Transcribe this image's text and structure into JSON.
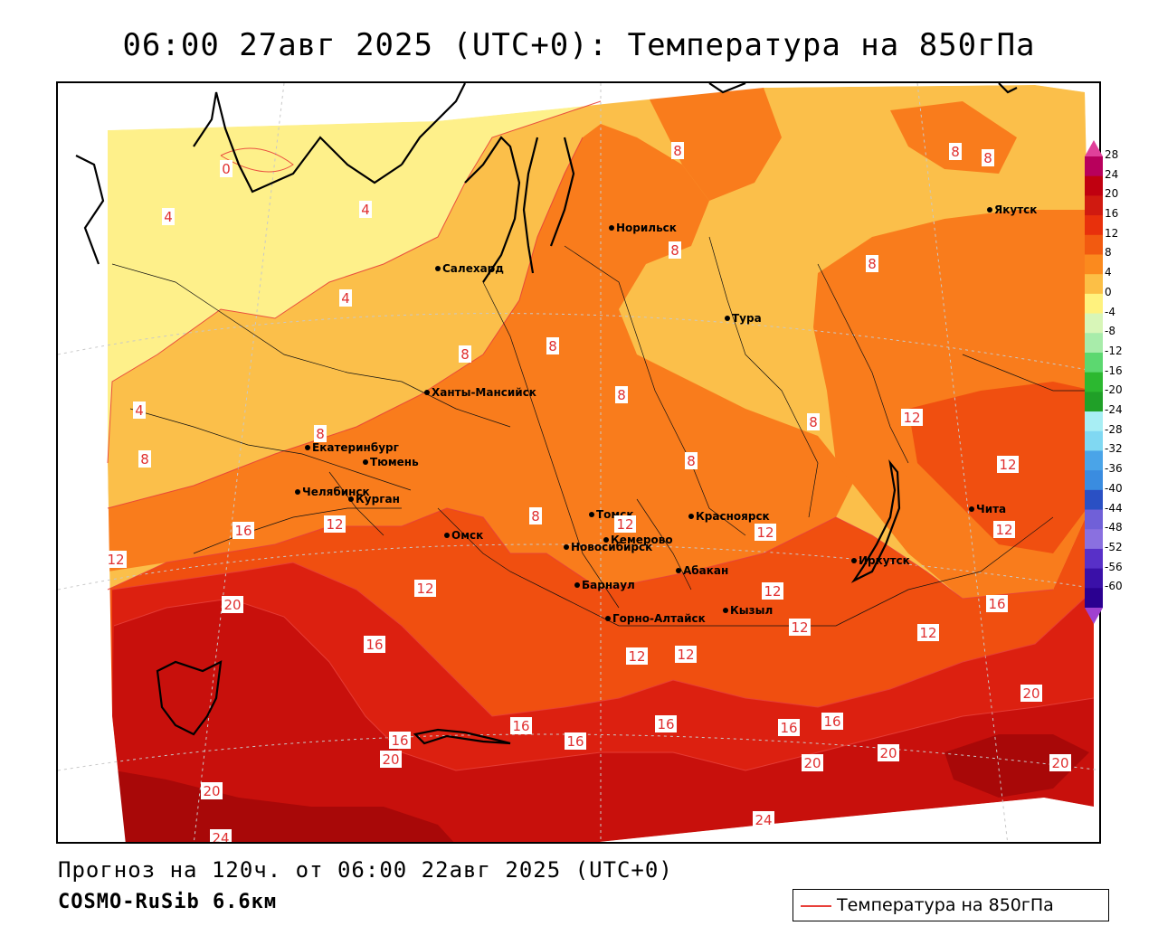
{
  "title": "06:00 27авг 2025 (UTC+0): Температура на 850гПа",
  "footer": {
    "forecast": "Прогноз на 120ч. от 06:00 22авг 2025 (UTC+0)",
    "model": "COSMO-RuSib 6.6км"
  },
  "legend": {
    "label": "Температура на 850гПа",
    "color": "#e8403a"
  },
  "colors": {
    "band_0_4": "#fef08a",
    "band_4_8": "#fbbf4a",
    "band_8_12": "#f97c1c",
    "band_12_16": "#f04f10",
    "band_16_20": "#dc2010",
    "band_20_24": "#c8100c",
    "band_24_28": "#a80808"
  },
  "colorbar": {
    "labels": [
      "28",
      "24",
      "20",
      "16",
      "12",
      "8",
      "4",
      "0",
      "-4",
      "-8",
      "-12",
      "-16",
      "-20",
      "-24",
      "-28",
      "-32",
      "-36",
      "-40",
      "-44",
      "-48",
      "-52",
      "-56",
      "-60"
    ],
    "colors": [
      "#b8005c",
      "#c00010",
      "#d01a10",
      "#e8300c",
      "#f25a10",
      "#fb8a1e",
      "#fcbf46",
      "#fff27e",
      "#d8f6b8",
      "#a8ecaa",
      "#5cd870",
      "#2cb830",
      "#20a028",
      "#a8eef4",
      "#80d8f2",
      "#4aa4e8",
      "#3a8ce0",
      "#2a50c4",
      "#7060d8",
      "#8a70e0",
      "#5830c8",
      "#3a10a8",
      "#2a0090"
    ]
  },
  "cities": [
    {
      "name": "Норильск"
    },
    {
      "name": "Якутск"
    },
    {
      "name": "Салехард"
    },
    {
      "name": "Тура"
    },
    {
      "name": "Ханты-Мансийск"
    },
    {
      "name": "Екатеринбург"
    },
    {
      "name": "Тюмень"
    },
    {
      "name": "Челябинск"
    },
    {
      "name": "Курган"
    },
    {
      "name": "Омск"
    },
    {
      "name": "Новосибирск"
    },
    {
      "name": "Томск"
    },
    {
      "name": "Кемерово"
    },
    {
      "name": "Красноярск"
    },
    {
      "name": "Абакан"
    },
    {
      "name": "Барнаул"
    },
    {
      "name": "Горно-Алтайск"
    },
    {
      "name": "Кызыл"
    },
    {
      "name": "Иркутск"
    },
    {
      "name": "Чита"
    }
  ],
  "isotherm_labels": [
    "0",
    "4",
    "4",
    "4",
    "4",
    "8",
    "8",
    "8",
    "8",
    "8",
    "8",
    "8",
    "8",
    "8",
    "8",
    "8",
    "8",
    "8",
    "12",
    "12",
    "12",
    "12",
    "12",
    "12",
    "12",
    "12",
    "12",
    "12",
    "12",
    "12",
    "12",
    "16",
    "16",
    "16",
    "16",
    "16",
    "16",
    "16",
    "16",
    "16",
    "20",
    "20",
    "20",
    "20",
    "20",
    "20",
    "20",
    "24",
    "24"
  ]
}
